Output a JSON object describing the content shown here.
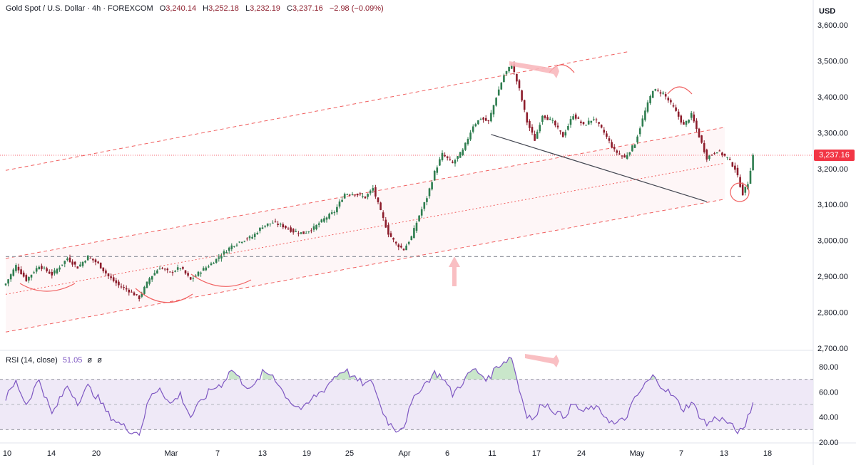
{
  "header": {
    "symbol": "Gold Spot / U.S. Dollar · 4h · FOREXCOM",
    "open_label": "O",
    "open": "3,240.14",
    "high_label": "H",
    "high": "3,252.18",
    "low_label": "L",
    "low": "3,232.19",
    "close_label": "C",
    "close": "3,237.16",
    "change": "−2.98 (−0.09%)"
  },
  "currency": "USD",
  "last_price_tag": "3,237.16",
  "rsi_header": {
    "label": "RSI (14, close)",
    "value": "51.05",
    "extra1": "ø",
    "extra2": "ø"
  },
  "colors": {
    "up": "#2e7d4f",
    "down": "#8c1c2b",
    "channel": "#f06060",
    "rsi": "#7e57c2",
    "rsi_band": "#ede7f6"
  },
  "chart_data": [
    {
      "type": "candlestick",
      "title": "",
      "price_axis_ticks": [
        "3,600.00",
        "3,500.00",
        "3,400.00",
        "3,300.00",
        "3,200.00",
        "3,100.00",
        "3,000.00",
        "2,900.00",
        "2,800.00",
        "2,700.00"
      ],
      "ylim": [
        2690,
        3620
      ],
      "x_tick_labels": [
        "10",
        "14",
        "20",
        "Mar",
        "7",
        "13",
        "19",
        "25",
        "Apr",
        "6",
        "11",
        "17",
        "24",
        "May",
        "7",
        "13",
        "18"
      ],
      "last_price": 3237.16,
      "support_level": 2955,
      "anchors": [
        [
          0,
          2880
        ],
        [
          4,
          2930
        ],
        [
          8,
          2890
        ],
        [
          13,
          2930
        ],
        [
          18,
          2905
        ],
        [
          24,
          2950
        ],
        [
          28,
          2925
        ],
        [
          32,
          2955
        ],
        [
          36,
          2935
        ],
        [
          40,
          2900
        ],
        [
          44,
          2875
        ],
        [
          48,
          2860
        ],
        [
          52,
          2840
        ],
        [
          56,
          2895
        ],
        [
          60,
          2925
        ],
        [
          64,
          2910
        ],
        [
          68,
          2925
        ],
        [
          72,
          2890
        ],
        [
          76,
          2915
        ],
        [
          80,
          2935
        ],
        [
          84,
          2960
        ],
        [
          88,
          2985
        ],
        [
          92,
          3000
        ],
        [
          96,
          3010
        ],
        [
          100,
          3040
        ],
        [
          104,
          3050
        ],
        [
          108,
          3040
        ],
        [
          112,
          3025
        ],
        [
          116,
          3020
        ],
        [
          120,
          3035
        ],
        [
          124,
          3060
        ],
        [
          128,
          3080
        ],
        [
          132,
          3130
        ],
        [
          136,
          3130
        ],
        [
          140,
          3120
        ],
        [
          143,
          3145
        ],
        [
          146,
          3080
        ],
        [
          149,
          3020
        ],
        [
          152,
          2990
        ],
        [
          155,
          2975
        ],
        [
          158,
          3010
        ],
        [
          161,
          3070
        ],
        [
          164,
          3120
        ],
        [
          167,
          3190
        ],
        [
          170,
          3240
        ],
        [
          174,
          3215
        ],
        [
          178,
          3250
        ],
        [
          182,
          3320
        ],
        [
          185,
          3340
        ],
        [
          188,
          3330
        ],
        [
          191,
          3400
        ],
        [
          194,
          3460
        ],
        [
          197,
          3490
        ],
        [
          200,
          3420
        ],
        [
          203,
          3330
        ],
        [
          206,
          3280
        ],
        [
          209,
          3350
        ],
        [
          213,
          3330
        ],
        [
          217,
          3290
        ],
        [
          221,
          3350
        ],
        [
          225,
          3320
        ],
        [
          229,
          3340
        ],
        [
          233,
          3300
        ],
        [
          237,
          3250
        ],
        [
          241,
          3230
        ],
        [
          245,
          3270
        ],
        [
          249,
          3360
        ],
        [
          252,
          3420
        ],
        [
          256,
          3410
        ],
        [
          260,
          3370
        ],
        [
          264,
          3320
        ],
        [
          267,
          3350
        ],
        [
          270,
          3290
        ],
        [
          273,
          3230
        ],
        [
          277,
          3250
        ],
        [
          281,
          3230
        ],
        [
          284,
          3200
        ],
        [
          287,
          3130
        ],
        [
          289,
          3160
        ],
        [
          291,
          3237
        ]
      ],
      "channel_lines": [
        {
          "name": "upper",
          "from": [
            0,
            3195
          ],
          "to": [
            242,
            3525
          ]
        },
        {
          "name": "middle-upper",
          "from": [
            0,
            2950
          ],
          "to": [
            280,
            3315
          ]
        },
        {
          "name": "middle",
          "from": [
            0,
            2850
          ],
          "to": [
            280,
            3215
          ]
        },
        {
          "name": "lower",
          "from": [
            0,
            2745
          ],
          "to": [
            280,
            3115
          ]
        }
      ],
      "trendline": {
        "from": [
          189,
          3295
        ],
        "to": [
          273,
          3108
        ]
      }
    },
    {
      "type": "line",
      "title": "",
      "series_label": "RSI",
      "y_ticks": [
        "80.00",
        "60.00",
        "40.00",
        "20.00"
      ],
      "ylim": [
        20,
        90
      ],
      "bands": {
        "upper": 70,
        "middle": 50,
        "lower": 30
      },
      "current": 51.05,
      "anchors": [
        [
          0,
          55
        ],
        [
          4,
          68
        ],
        [
          8,
          50
        ],
        [
          13,
          70
        ],
        [
          18,
          42
        ],
        [
          24,
          65
        ],
        [
          28,
          52
        ],
        [
          32,
          64
        ],
        [
          36,
          55
        ],
        [
          40,
          42
        ],
        [
          44,
          35
        ],
        [
          48,
          30
        ],
        [
          52,
          27
        ],
        [
          56,
          55
        ],
        [
          60,
          64
        ],
        [
          64,
          50
        ],
        [
          68,
          58
        ],
        [
          72,
          40
        ],
        [
          76,
          52
        ],
        [
          80,
          62
        ],
        [
          84,
          66
        ],
        [
          88,
          78
        ],
        [
          92,
          68
        ],
        [
          96,
          62
        ],
        [
          100,
          75
        ],
        [
          104,
          74
        ],
        [
          108,
          60
        ],
        [
          112,
          50
        ],
        [
          116,
          46
        ],
        [
          120,
          56
        ],
        [
          124,
          62
        ],
        [
          128,
          72
        ],
        [
          132,
          78
        ],
        [
          136,
          70
        ],
        [
          140,
          66
        ],
        [
          143,
          68
        ],
        [
          146,
          48
        ],
        [
          149,
          36
        ],
        [
          152,
          30
        ],
        [
          155,
          33
        ],
        [
          158,
          50
        ],
        [
          161,
          62
        ],
        [
          164,
          68
        ],
        [
          167,
          75
        ],
        [
          170,
          72
        ],
        [
          174,
          58
        ],
        [
          178,
          68
        ],
        [
          182,
          78
        ],
        [
          185,
          74
        ],
        [
          188,
          70
        ],
        [
          191,
          80
        ],
        [
          194,
          84
        ],
        [
          197,
          88
        ],
        [
          200,
          62
        ],
        [
          203,
          42
        ],
        [
          206,
          38
        ],
        [
          209,
          52
        ],
        [
          213,
          46
        ],
        [
          217,
          40
        ],
        [
          221,
          50
        ],
        [
          225,
          44
        ],
        [
          229,
          48
        ],
        [
          233,
          42
        ],
        [
          237,
          34
        ],
        [
          241,
          38
        ],
        [
          245,
          54
        ],
        [
          249,
          66
        ],
        [
          252,
          72
        ],
        [
          256,
          64
        ],
        [
          260,
          56
        ],
        [
          264,
          46
        ],
        [
          267,
          52
        ],
        [
          270,
          42
        ],
        [
          273,
          34
        ],
        [
          277,
          40
        ],
        [
          281,
          36
        ],
        [
          284,
          30
        ],
        [
          287,
          28
        ],
        [
          289,
          40
        ],
        [
          291,
          51
        ]
      ]
    }
  ]
}
